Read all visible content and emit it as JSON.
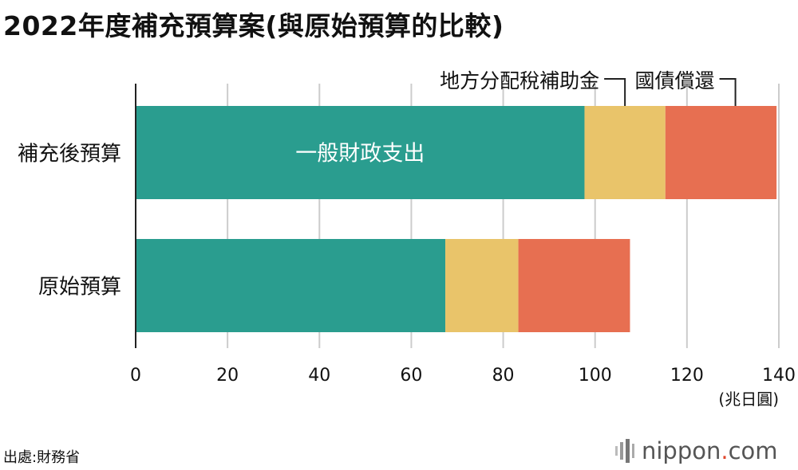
{
  "title": "2022年度補充預算案(與原始預算的比較)",
  "source": "出處:財務省",
  "brand": {
    "name_pre": "nippon",
    "dot": ".",
    "name_post": "com"
  },
  "colors": {
    "general": "#2a9d8f",
    "local": "#e9c46a",
    "debt": "#e76f51",
    "grid": "#cccccc",
    "text": "#111111"
  },
  "chart_data": {
    "type": "bar",
    "orientation": "horizontal",
    "stacked": true,
    "categories": [
      "補充後預算",
      "原始預算"
    ],
    "series": [
      {
        "name": "一般財政支出",
        "values": [
          97.7,
          67.4
        ],
        "color": "#2a9d8f"
      },
      {
        "name": "地方分配稅補助金",
        "values": [
          17.6,
          15.9
        ],
        "color": "#e9c46a"
      },
      {
        "name": "國債償還",
        "values": [
          24.2,
          24.3
        ],
        "color": "#e76f51"
      }
    ],
    "xlim": [
      0,
      140
    ],
    "xticks": [
      0,
      20,
      40,
      60,
      80,
      100,
      120,
      140
    ],
    "unit_label": "(兆日圓)",
    "grid": true,
    "legend": "callouts above top bar"
  }
}
